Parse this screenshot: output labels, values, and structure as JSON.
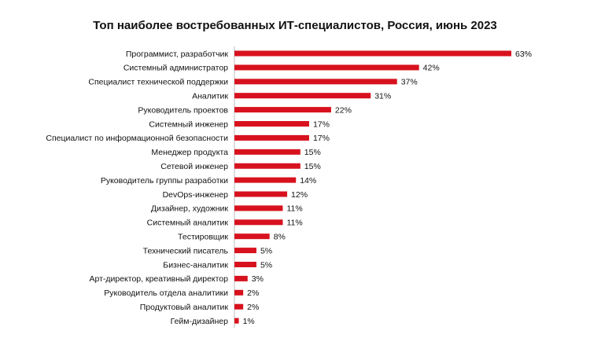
{
  "chart_data": {
    "type": "bar",
    "orientation": "horizontal",
    "title": "Топ наиболее востребованных ИТ-специалистов, Россия, июнь 2023",
    "xlabel": "",
    "ylabel": "",
    "xlim": [
      0,
      63
    ],
    "grid": false,
    "legend": "none",
    "value_suffix": "%",
    "bar_color": "#d7121e",
    "categories": [
      "Программист, разработчик",
      "Системный администратор",
      "Специалист технической поддержки",
      "Аналитик",
      "Руководитель проектов",
      "Системный инженер",
      "Специалист по информационной безопасности",
      "Менеджер продукта",
      "Сетевой инженер",
      "Руководитель группы разработки",
      "DevOps-инженер",
      "Дизайнер, художник",
      "Системный аналитик",
      "Тестировщик",
      "Технический писатель",
      "Бизнес-аналитик",
      "Арт-директор, креативный директор",
      "Руководитель отдела аналитики",
      "Продуктовый аналитик",
      "Гейм-дизайнер"
    ],
    "values": [
      63,
      42,
      37,
      31,
      22,
      17,
      17,
      15,
      15,
      14,
      12,
      11,
      11,
      8,
      5,
      5,
      3,
      2,
      2,
      1
    ]
  }
}
